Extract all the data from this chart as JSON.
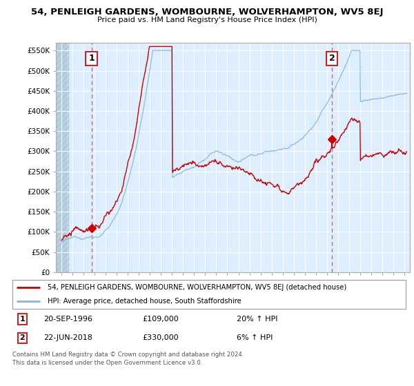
{
  "title": "54, PENLEIGH GARDENS, WOMBOURNE, WOLVERHAMPTON, WV5 8EJ",
  "subtitle": "Price paid vs. HM Land Registry's House Price Index (HPI)",
  "ylim": [
    0,
    570000
  ],
  "yticks": [
    0,
    50000,
    100000,
    150000,
    200000,
    250000,
    300000,
    350000,
    400000,
    450000,
    500000,
    550000
  ],
  "ytick_labels": [
    "£0",
    "£50K",
    "£100K",
    "£150K",
    "£200K",
    "£250K",
    "£300K",
    "£350K",
    "£400K",
    "£450K",
    "£500K",
    "£550K"
  ],
  "sale1_date": 1996.72,
  "sale1_price": 109000,
  "sale1_label": "1",
  "sale2_date": 2018.47,
  "sale2_price": 330000,
  "sale2_label": "2",
  "hpi_color": "#8ab4d4",
  "price_color": "#cc0000",
  "dashed_color": "#e06060",
  "chart_bg": "#ddeeff",
  "hatch_bg": "#c8ddef",
  "background_color": "#ffffff",
  "grid_color": "#ffffff",
  "legend_line1": "54, PENLEIGH GARDENS, WOMBOURNE, WOLVERHAMPTON, WV5 8EJ (detached house)",
  "legend_line2": "HPI: Average price, detached house, South Staffordshire",
  "footer1": "Contains HM Land Registry data © Crown copyright and database right 2024.",
  "footer2": "This data is licensed under the Open Government Licence v3.0."
}
